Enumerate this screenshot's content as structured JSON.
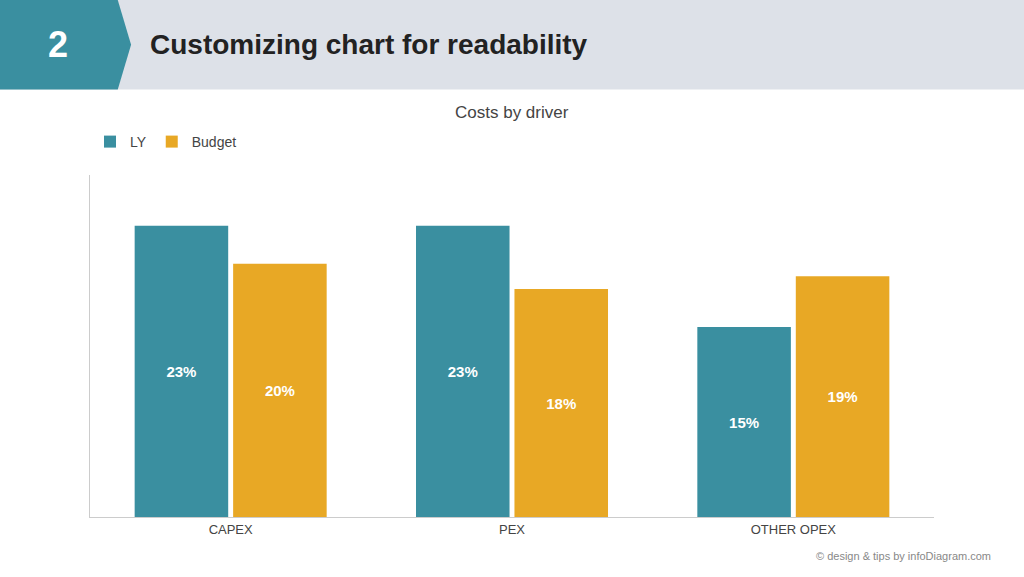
{
  "chart_data": {
    "type": "bar",
    "title": "Customizing chart for readability",
    "subtitle": "Costs by driver",
    "annotations": [
      "2",
      "© design & tips by infoDiagram.com"
    ],
    "categories": [
      "CAPEX",
      "PEX",
      "OTHER OPEX"
    ],
    "series": [
      {
        "name": "LY",
        "color": "#3a8fa0",
        "values": [
          23,
          23,
          15
        ],
        "value_labels": [
          "23%",
          "23%",
          "15%"
        ]
      },
      {
        "name": "Budget",
        "color": "#e8a825",
        "values": [
          20,
          18,
          19
        ],
        "value_labels": [
          "20%",
          "18%",
          "19%"
        ]
      }
    ],
    "ylim": [
      0,
      27
    ],
    "yticks": [],
    "grid": false,
    "legend": "upper left",
    "data_labels": true,
    "tick_labels": "x"
  }
}
